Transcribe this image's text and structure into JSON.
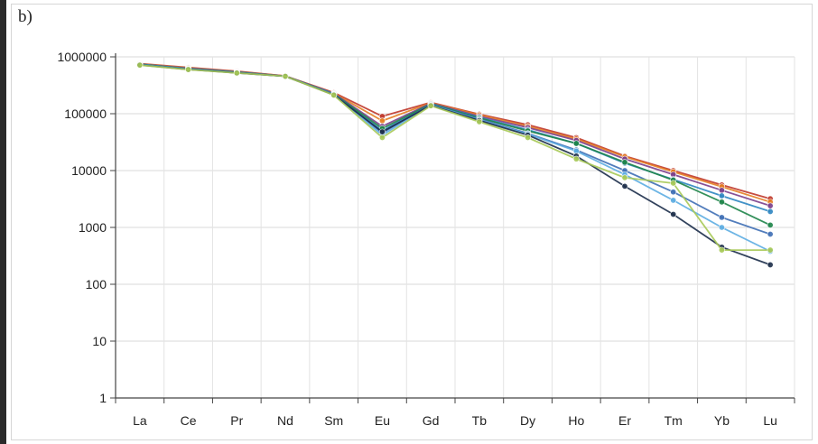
{
  "panel_label": "b)",
  "chart_data": {
    "type": "line",
    "title": "",
    "xlabel": "",
    "ylabel": "",
    "yscale": "log",
    "ylim": [
      1,
      1000000
    ],
    "yticks": [
      "1",
      "10",
      "100",
      "1000",
      "10000",
      "100000",
      "1000000"
    ],
    "categories": [
      "La",
      "Ce",
      "Pr",
      "Nd",
      "Sm",
      "Eu",
      "Gd",
      "Tb",
      "Dy",
      "Ho",
      "Er",
      "Tm",
      "Yb",
      "Lu"
    ],
    "grid": true,
    "series": [
      {
        "color": "#c0392b",
        "values": [
          760000,
          650000,
          560000,
          460000,
          235000,
          90000,
          158000,
          98000,
          64000,
          38000,
          18000,
          10000,
          5600,
          3200
        ]
      },
      {
        "color": "#e67e22",
        "values": [
          750000,
          640000,
          550000,
          460000,
          230000,
          75000,
          155000,
          95000,
          60000,
          36000,
          17500,
          9500,
          5200,
          2800
        ]
      },
      {
        "color": "#7b3f8c",
        "values": [
          745000,
          630000,
          545000,
          458000,
          228000,
          60000,
          152000,
          90000,
          57000,
          34000,
          16000,
          8500,
          4500,
          2400
        ]
      },
      {
        "color": "#2e86c1",
        "values": [
          740000,
          620000,
          540000,
          455000,
          225000,
          50000,
          150000,
          86000,
          52000,
          30000,
          13500,
          7000,
          3600,
          1900
        ]
      },
      {
        "color": "#1e8449",
        "values": [
          735000,
          615000,
          535000,
          455000,
          222000,
          55000,
          148000,
          84000,
          50000,
          30000,
          14000,
          6800,
          2800,
          1100
        ]
      },
      {
        "color": "#3f6fb5",
        "values": [
          730000,
          610000,
          530000,
          455000,
          220000,
          46000,
          145000,
          80000,
          45000,
          23000,
          10000,
          4200,
          1500,
          760
        ]
      },
      {
        "color": "#5dade2",
        "values": [
          725000,
          605000,
          525000,
          455000,
          218000,
          42000,
          142000,
          78000,
          44000,
          22000,
          8500,
          3000,
          1000,
          380
        ]
      },
      {
        "color": "#1c2e4a",
        "values": [
          720000,
          600000,
          522000,
          455000,
          215000,
          48000,
          140000,
          76000,
          42000,
          18000,
          5300,
          1700,
          450,
          220
        ]
      },
      {
        "color": "#a7c957",
        "values": [
          715000,
          598000,
          520000,
          455000,
          212000,
          38000,
          138000,
          72000,
          38000,
          16000,
          7500,
          6000,
          400,
          400
        ]
      }
    ]
  }
}
